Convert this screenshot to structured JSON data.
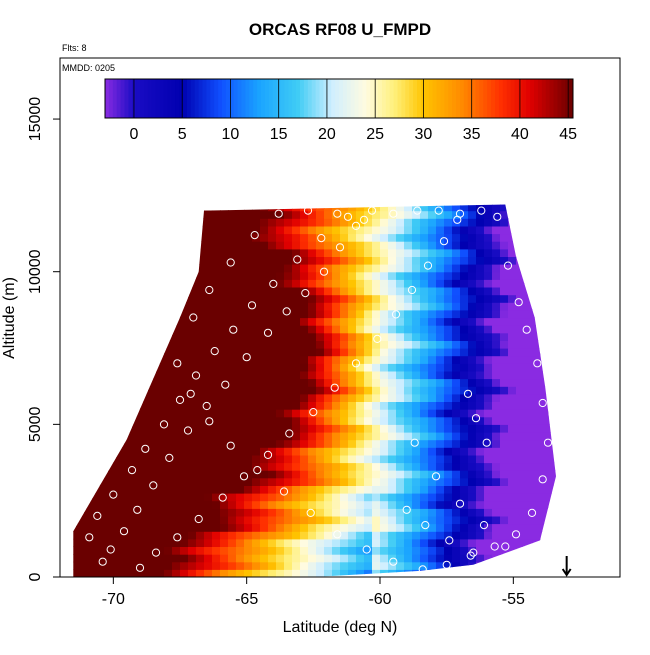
{
  "chart_data": {
    "type": "heatmap",
    "title": "ORCAS RF08 U_FMPD",
    "subtitle_flights": "Flts: 8",
    "subtitle_date": "MMDD: 0205",
    "xlabel": "Latitude (deg N)",
    "ylabel": "Altitude (m)",
    "xlim": [
      -72.0,
      -51.0
    ],
    "ylim": [
      0,
      17000
    ],
    "x_ticks": [
      -70,
      -65,
      -60,
      -55
    ],
    "x_tick_labels": [
      "-70",
      "-65",
      "-60",
      "-55"
    ],
    "y_ticks": [
      0,
      5000,
      10000,
      15000
    ],
    "y_tick_labels": [
      "0",
      "5000",
      "10000",
      "15000"
    ],
    "colorbar": {
      "min": -3,
      "max": 45.5,
      "ticks": [
        0,
        5,
        10,
        15,
        20,
        25,
        30,
        35,
        40,
        45
      ],
      "tick_labels": [
        "0",
        "5",
        "10",
        "15",
        "20",
        "25",
        "30",
        "35",
        "40",
        "45"
      ],
      "stops": [
        {
          "value": -3,
          "color": "#8a2be2"
        },
        {
          "value": 0,
          "color": "#1a0cc4"
        },
        {
          "value": 5,
          "color": "#0000b0"
        },
        {
          "value": 9,
          "color": "#1050ff"
        },
        {
          "value": 13,
          "color": "#1aa4ff"
        },
        {
          "value": 17,
          "color": "#40ccf5"
        },
        {
          "value": 20.5,
          "color": "#cfeeff"
        },
        {
          "value": 24,
          "color": "#fffbe0"
        },
        {
          "value": 27,
          "color": "#fff07a"
        },
        {
          "value": 30,
          "color": "#ffc400"
        },
        {
          "value": 34,
          "color": "#ff8a00"
        },
        {
          "value": 38,
          "color": "#ff3000"
        },
        {
          "value": 41,
          "color": "#e00000"
        },
        {
          "value": 45.5,
          "color": "#6a0000"
        }
      ]
    },
    "field_description": "U wind (m/s) curtain vs latitude and altitude",
    "domain_outline": [
      [
        -71.5,
        0
      ],
      [
        -71.5,
        1500
      ],
      [
        -70.5,
        3000
      ],
      [
        -69.5,
        4500
      ],
      [
        -68.5,
        6500
      ],
      [
        -67.5,
        8500
      ],
      [
        -66.8,
        10000
      ],
      [
        -66.6,
        12000
      ],
      [
        -55.3,
        12200
      ],
      [
        -54.9,
        10500
      ],
      [
        -54.2,
        8500
      ],
      [
        -53.8,
        6200
      ],
      [
        -53.4,
        3300
      ],
      [
        -54.0,
        1200
      ],
      [
        -56.5,
        400
      ],
      [
        -58.5,
        200
      ],
      [
        -62.5,
        0
      ]
    ],
    "sample_points": [
      [
        -70.4,
        500
      ],
      [
        -70.1,
        900
      ],
      [
        -69.6,
        1500
      ],
      [
        -69.1,
        2200
      ],
      [
        -68.5,
        3000
      ],
      [
        -67.9,
        3900
      ],
      [
        -67.2,
        4800
      ],
      [
        -66.5,
        5600
      ],
      [
        -65.8,
        6300
      ],
      [
        -65.0,
        7200
      ],
      [
        -64.2,
        8000
      ],
      [
        -63.5,
        8700
      ],
      [
        -62.8,
        9300
      ],
      [
        -62.1,
        10000
      ],
      [
        -61.5,
        10800
      ],
      [
        -60.9,
        11500
      ],
      [
        -60.3,
        12000
      ],
      [
        -59.5,
        11900
      ],
      [
        -58.6,
        12000
      ],
      [
        -57.8,
        12000
      ],
      [
        -57.0,
        11900
      ],
      [
        -56.2,
        12000
      ],
      [
        -55.6,
        11800
      ],
      [
        -55.2,
        10200
      ],
      [
        -54.8,
        9000
      ],
      [
        -54.5,
        8100
      ],
      [
        -54.1,
        7000
      ],
      [
        -53.9,
        5700
      ],
      [
        -53.7,
        4400
      ],
      [
        -53.9,
        3200
      ],
      [
        -54.3,
        2100
      ],
      [
        -54.9,
        1400
      ],
      [
        -55.7,
        1000
      ],
      [
        -56.6,
        700
      ],
      [
        -57.5,
        400
      ],
      [
        -58.4,
        250
      ],
      [
        -59.5,
        500
      ],
      [
        -60.5,
        900
      ],
      [
        -61.6,
        1400
      ],
      [
        -62.6,
        2100
      ],
      [
        -63.6,
        2800
      ],
      [
        -64.6,
        3500
      ],
      [
        -65.6,
        4300
      ],
      [
        -66.4,
        5100
      ],
      [
        -67.1,
        6000
      ],
      [
        -67.6,
        7000
      ],
      [
        -67.0,
        8500
      ],
      [
        -66.4,
        9400
      ],
      [
        -65.6,
        10300
      ],
      [
        -64.7,
        11200
      ],
      [
        -63.8,
        11900
      ],
      [
        -62.7,
        12000
      ],
      [
        -61.6,
        11900
      ],
      [
        -60.6,
        11700
      ],
      [
        -58.7,
        4400
      ],
      [
        -57.9,
        3300
      ],
      [
        -57.0,
        2400
      ],
      [
        -56.1,
        1700
      ],
      [
        -55.3,
        1000
      ],
      [
        -54.6,
        600
      ],
      [
        -69.0,
        300
      ],
      [
        -68.4,
        800
      ],
      [
        -67.6,
        1300
      ],
      [
        -66.8,
        1900
      ],
      [
        -65.9,
        2600
      ],
      [
        -65.1,
        3300
      ],
      [
        -64.2,
        4000
      ],
      [
        -63.4,
        4700
      ],
      [
        -62.5,
        5400
      ],
      [
        -61.7,
        6200
      ],
      [
        -60.9,
        7000
      ],
      [
        -60.1,
        7800
      ],
      [
        -59.4,
        8600
      ],
      [
        -58.8,
        9400
      ],
      [
        -58.2,
        10200
      ],
      [
        -57.6,
        11000
      ],
      [
        -57.1,
        11700
      ],
      [
        -56.7,
        6000
      ],
      [
        -56.4,
        5200
      ],
      [
        -56.0,
        4400
      ],
      [
        -70.9,
        1300
      ],
      [
        -70.6,
        2000
      ],
      [
        -70.0,
        2700
      ],
      [
        -69.3,
        3500
      ],
      [
        -68.8,
        4200
      ],
      [
        -68.1,
        5000
      ],
      [
        -67.5,
        5800
      ],
      [
        -66.9,
        6600
      ],
      [
        -66.2,
        7400
      ],
      [
        -65.5,
        8100
      ],
      [
        -64.8,
        8900
      ],
      [
        -64.0,
        9600
      ],
      [
        -63.1,
        10400
      ],
      [
        -62.2,
        11100
      ],
      [
        -61.2,
        11800
      ],
      [
        -59.0,
        2200
      ],
      [
        -58.3,
        1700
      ],
      [
        -57.4,
        1200
      ],
      [
        -56.5,
        800
      ],
      [
        -55.6,
        500
      ]
    ],
    "flight_end_marker": {
      "latitude": -53.0,
      "label": "↓"
    }
  }
}
